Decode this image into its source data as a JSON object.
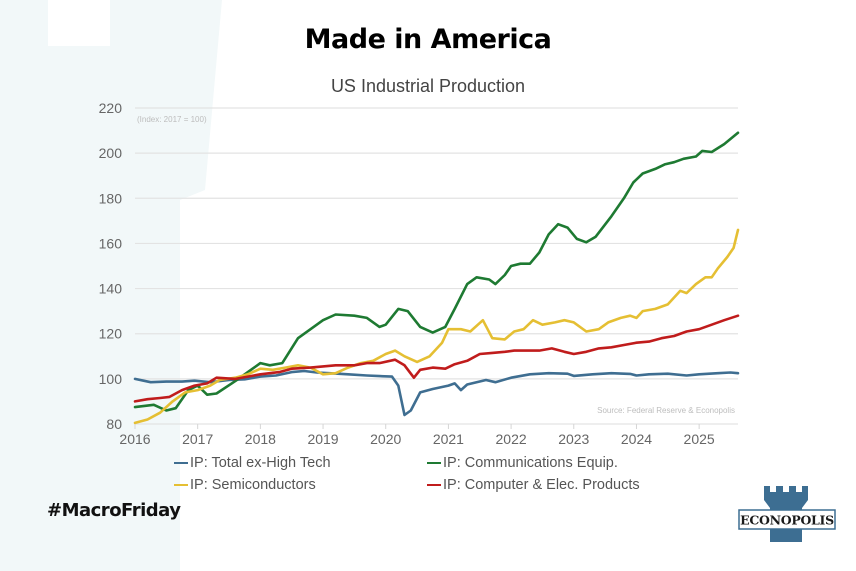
{
  "page": {
    "title": "Made in America",
    "hashtag": "#MacroFriday",
    "logo_text": "ECONOPOLIS",
    "colors": {
      "background_tint": "#f4f9fa",
      "logo_blue": "#3d6e92"
    }
  },
  "chart_data": {
    "type": "line",
    "title": "US Industrial Production",
    "note": "(Index: 2017 = 100)",
    "source": "Source: Federal Reserve  & Econopolis",
    "xlabel": "",
    "ylabel": "",
    "xlim": [
      2016,
      2025.62
    ],
    "ylim": [
      80,
      220
    ],
    "yticks": [
      80,
      100,
      120,
      140,
      160,
      180,
      200,
      220
    ],
    "xticks": [
      2016,
      2017,
      2018,
      2019,
      2020,
      2021,
      2022,
      2023,
      2024,
      2025
    ],
    "grid": true,
    "legend_position": "bottom",
    "series": [
      {
        "name": "IP: Total ex-High Tech",
        "color": "#3f6e91",
        "points": [
          [
            2016.0,
            100
          ],
          [
            2016.25,
            98.5
          ],
          [
            2016.5,
            98.8
          ],
          [
            2016.75,
            98.8
          ],
          [
            2016.95,
            99.2
          ],
          [
            2017.2,
            98.5
          ],
          [
            2017.5,
            99.5
          ],
          [
            2017.75,
            99.8
          ],
          [
            2018.0,
            101
          ],
          [
            2018.25,
            101.5
          ],
          [
            2018.5,
            103
          ],
          [
            2018.7,
            103.5
          ],
          [
            2018.9,
            102.8
          ],
          [
            2019.1,
            102.5
          ],
          [
            2019.4,
            102
          ],
          [
            2019.7,
            101.5
          ],
          [
            2019.9,
            101.2
          ],
          [
            2020.1,
            101
          ],
          [
            2020.2,
            97
          ],
          [
            2020.3,
            84
          ],
          [
            2020.4,
            86
          ],
          [
            2020.55,
            94
          ],
          [
            2020.75,
            95.5
          ],
          [
            2021.0,
            97
          ],
          [
            2021.1,
            98
          ],
          [
            2021.2,
            95
          ],
          [
            2021.3,
            97.5
          ],
          [
            2021.6,
            99.5
          ],
          [
            2021.75,
            98.5
          ],
          [
            2022.0,
            100.5
          ],
          [
            2022.3,
            102
          ],
          [
            2022.6,
            102.5
          ],
          [
            2022.9,
            102.3
          ],
          [
            2023.0,
            101.3
          ],
          [
            2023.3,
            102
          ],
          [
            2023.6,
            102.5
          ],
          [
            2023.9,
            102.2
          ],
          [
            2024.0,
            101.5
          ],
          [
            2024.2,
            102
          ],
          [
            2024.5,
            102.3
          ],
          [
            2024.8,
            101.5
          ],
          [
            2025.0,
            102
          ],
          [
            2025.3,
            102.5
          ],
          [
            2025.5,
            102.8
          ],
          [
            2025.62,
            102.5
          ]
        ]
      },
      {
        "name": "IP: Communications Equip.",
        "color": "#1e7a32",
        "points": [
          [
            2016.0,
            87.5
          ],
          [
            2016.3,
            88.5
          ],
          [
            2016.5,
            86
          ],
          [
            2016.65,
            87
          ],
          [
            2016.85,
            95
          ],
          [
            2017.0,
            97
          ],
          [
            2017.15,
            93
          ],
          [
            2017.3,
            93.5
          ],
          [
            2017.6,
            99
          ],
          [
            2017.85,
            104
          ],
          [
            2018.0,
            107
          ],
          [
            2018.15,
            106
          ],
          [
            2018.35,
            107
          ],
          [
            2018.6,
            118
          ],
          [
            2018.8,
            122
          ],
          [
            2019.0,
            126
          ],
          [
            2019.2,
            128.5
          ],
          [
            2019.5,
            128
          ],
          [
            2019.7,
            127
          ],
          [
            2019.9,
            123
          ],
          [
            2020.0,
            124
          ],
          [
            2020.2,
            131
          ],
          [
            2020.35,
            130
          ],
          [
            2020.55,
            123
          ],
          [
            2020.75,
            120.5
          ],
          [
            2020.95,
            123
          ],
          [
            2021.1,
            131
          ],
          [
            2021.3,
            142
          ],
          [
            2021.45,
            145
          ],
          [
            2021.65,
            144
          ],
          [
            2021.75,
            142
          ],
          [
            2021.9,
            146
          ],
          [
            2022.0,
            150
          ],
          [
            2022.15,
            151
          ],
          [
            2022.3,
            151
          ],
          [
            2022.45,
            156
          ],
          [
            2022.6,
            164
          ],
          [
            2022.75,
            168.5
          ],
          [
            2022.9,
            167
          ],
          [
            2023.05,
            162
          ],
          [
            2023.2,
            160.5
          ],
          [
            2023.35,
            163
          ],
          [
            2023.6,
            172
          ],
          [
            2023.8,
            180
          ],
          [
            2023.95,
            187
          ],
          [
            2024.1,
            191
          ],
          [
            2024.3,
            193
          ],
          [
            2024.45,
            195
          ],
          [
            2024.6,
            196
          ],
          [
            2024.75,
            197.5
          ],
          [
            2024.95,
            198.5
          ],
          [
            2025.05,
            201
          ],
          [
            2025.2,
            200.5
          ],
          [
            2025.4,
            204
          ],
          [
            2025.62,
            209
          ]
        ]
      },
      {
        "name": "IP: Semiconductors",
        "color": "#e5bf33",
        "points": [
          [
            2016.0,
            80.5
          ],
          [
            2016.2,
            82
          ],
          [
            2016.4,
            85
          ],
          [
            2016.6,
            90
          ],
          [
            2016.8,
            94
          ],
          [
            2017.0,
            95
          ],
          [
            2017.2,
            97
          ],
          [
            2017.35,
            99.5
          ],
          [
            2017.6,
            100.5
          ],
          [
            2017.8,
            102
          ],
          [
            2018.0,
            104.5
          ],
          [
            2018.2,
            104
          ],
          [
            2018.4,
            105
          ],
          [
            2018.6,
            106
          ],
          [
            2018.8,
            105
          ],
          [
            2019.0,
            102
          ],
          [
            2019.2,
            102.5
          ],
          [
            2019.4,
            105
          ],
          [
            2019.6,
            107
          ],
          [
            2019.8,
            108
          ],
          [
            2020.0,
            111
          ],
          [
            2020.15,
            112.5
          ],
          [
            2020.3,
            110
          ],
          [
            2020.5,
            107.5
          ],
          [
            2020.7,
            110
          ],
          [
            2020.9,
            116
          ],
          [
            2021.0,
            122
          ],
          [
            2021.2,
            122
          ],
          [
            2021.35,
            121
          ],
          [
            2021.55,
            126
          ],
          [
            2021.7,
            118
          ],
          [
            2021.9,
            117.5
          ],
          [
            2022.05,
            121
          ],
          [
            2022.2,
            122
          ],
          [
            2022.35,
            126
          ],
          [
            2022.5,
            124
          ],
          [
            2022.7,
            125
          ],
          [
            2022.85,
            126
          ],
          [
            2023.0,
            125
          ],
          [
            2023.2,
            121
          ],
          [
            2023.4,
            122
          ],
          [
            2023.55,
            125
          ],
          [
            2023.75,
            127
          ],
          [
            2023.9,
            128
          ],
          [
            2024.0,
            127
          ],
          [
            2024.1,
            130
          ],
          [
            2024.3,
            131
          ],
          [
            2024.5,
            133
          ],
          [
            2024.7,
            139
          ],
          [
            2024.8,
            138
          ],
          [
            2024.95,
            142
          ],
          [
            2025.1,
            145
          ],
          [
            2025.2,
            145
          ],
          [
            2025.3,
            149
          ],
          [
            2025.45,
            154
          ],
          [
            2025.55,
            158
          ],
          [
            2025.62,
            166
          ]
        ]
      },
      {
        "name": "IP: Computer & Elec. Products",
        "color": "#c01c1c",
        "points": [
          [
            2016.0,
            90
          ],
          [
            2016.2,
            91
          ],
          [
            2016.4,
            91.5
          ],
          [
            2016.55,
            92
          ],
          [
            2016.75,
            95
          ],
          [
            2016.95,
            97
          ],
          [
            2017.15,
            98
          ],
          [
            2017.3,
            100.5
          ],
          [
            2017.6,
            100
          ],
          [
            2017.8,
            101
          ],
          [
            2018.0,
            102
          ],
          [
            2018.3,
            103
          ],
          [
            2018.5,
            104.5
          ],
          [
            2018.8,
            105
          ],
          [
            2019.0,
            105.5
          ],
          [
            2019.2,
            106
          ],
          [
            2019.5,
            106
          ],
          [
            2019.7,
            107
          ],
          [
            2019.9,
            107
          ],
          [
            2020.15,
            108.5
          ],
          [
            2020.3,
            106
          ],
          [
            2020.45,
            100.5
          ],
          [
            2020.55,
            104
          ],
          [
            2020.75,
            105
          ],
          [
            2020.95,
            104.5
          ],
          [
            2021.1,
            106.5
          ],
          [
            2021.3,
            108
          ],
          [
            2021.5,
            111
          ],
          [
            2021.7,
            111.5
          ],
          [
            2021.9,
            112
          ],
          [
            2022.05,
            112.5
          ],
          [
            2022.25,
            112.5
          ],
          [
            2022.45,
            112.5
          ],
          [
            2022.65,
            113.5
          ],
          [
            2022.85,
            112
          ],
          [
            2023.0,
            111
          ],
          [
            2023.2,
            112
          ],
          [
            2023.4,
            113.5
          ],
          [
            2023.6,
            114
          ],
          [
            2023.8,
            115
          ],
          [
            2024.0,
            116
          ],
          [
            2024.2,
            116.5
          ],
          [
            2024.4,
            118
          ],
          [
            2024.6,
            119
          ],
          [
            2024.8,
            121
          ],
          [
            2025.0,
            122
          ],
          [
            2025.2,
            124
          ],
          [
            2025.4,
            126
          ],
          [
            2025.62,
            128
          ]
        ]
      }
    ]
  }
}
